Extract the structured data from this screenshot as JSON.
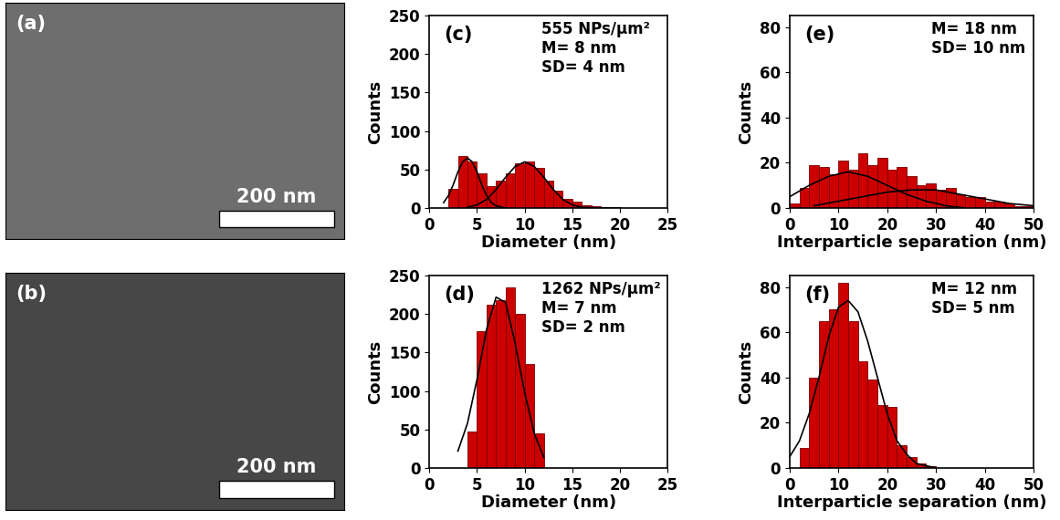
{
  "chart_data": [
    {
      "type": "image",
      "panel_label": "(a)",
      "scale_bar": "200 nm",
      "color": "#6e6e6e",
      "tick_labels": false
    },
    {
      "type": "image",
      "panel_label": "(b)",
      "scale_bar": "200 nm",
      "color": "#474747",
      "tick_labels": false
    },
    {
      "type": "histogram",
      "panel_label": "(c)",
      "annotations": [
        "555 NPs/µm²",
        "M= 8 nm",
        "SD= 4 nm"
      ],
      "x_label": "Diameter (nm)",
      "y_label": "Counts",
      "color": "#cc0000",
      "bins": [
        2,
        3,
        4,
        5,
        6,
        7,
        8,
        9,
        10,
        11,
        12,
        13,
        14,
        15,
        16,
        17,
        18,
        19,
        20
      ],
      "counts": [
        25,
        68,
        60,
        45,
        28,
        35,
        45,
        58,
        60,
        52,
        35,
        22,
        12,
        8,
        4,
        2,
        1,
        1
      ],
      "curves": [
        {
          "color": "#000000",
          "x": [
            1.5,
            2,
            2.5,
            3,
            3.5,
            4,
            4.5,
            5,
            5.5,
            6,
            6.5,
            7,
            8
          ],
          "values": [
            7,
            16,
            30,
            47,
            60,
            65,
            60,
            47,
            30,
            16,
            7,
            3,
            0
          ]
        },
        {
          "color": "#000000",
          "x": [
            4,
            5,
            6,
            7,
            8,
            9,
            10,
            11,
            12,
            13,
            14,
            15,
            16,
            18,
            20
          ],
          "values": [
            1,
            4,
            11,
            24,
            40,
            54,
            60,
            54,
            40,
            24,
            11,
            4,
            1,
            0,
            0
          ]
        }
      ],
      "xlim": [
        0,
        25
      ],
      "xticks": [
        0,
        5,
        10,
        15,
        20,
        25
      ],
      "ylim": [
        0,
        250
      ],
      "yticks": [
        0,
        50,
        100,
        150,
        200,
        250
      ]
    },
    {
      "type": "histogram",
      "panel_label": "(d)",
      "annotations": [
        "1262 NPs/µm²",
        "M= 7 nm",
        "SD= 2 nm"
      ],
      "x_label": "Diameter (nm)",
      "y_label": "Counts",
      "color": "#cc0000",
      "bins": [
        4,
        5,
        6,
        7,
        8,
        9,
        10,
        11,
        12
      ],
      "counts": [
        48,
        178,
        212,
        218,
        235,
        200,
        135,
        45
      ],
      "curves": [
        {
          "color": "#000000",
          "x": [
            3,
            4,
            5,
            6,
            7,
            8,
            9,
            10,
            11,
            12
          ],
          "values": [
            22,
            58,
            115,
            180,
            222,
            215,
            162,
            98,
            45,
            14
          ]
        }
      ],
      "xlim": [
        0,
        25
      ],
      "xticks": [
        0,
        5,
        10,
        15,
        20,
        25
      ],
      "ylim": [
        0,
        250
      ],
      "yticks": [
        0,
        50,
        100,
        150,
        200,
        250
      ]
    },
    {
      "type": "histogram",
      "panel_label": "(e)",
      "annotations": [
        "M= 18 nm",
        "SD= 10 nm"
      ],
      "x_label": "Interparticle separation (nm)",
      "y_label": "Counts",
      "color": "#cc0000",
      "bins": [
        0,
        2,
        4,
        6,
        8,
        10,
        12,
        14,
        16,
        18,
        20,
        22,
        24,
        26,
        28,
        30,
        32,
        34,
        36,
        38,
        40,
        42,
        44,
        46,
        48,
        50
      ],
      "counts": [
        2,
        9,
        19,
        18,
        15,
        21,
        17,
        24,
        19,
        22,
        17,
        18,
        14,
        10,
        11,
        8,
        9,
        6,
        5,
        5,
        3,
        3,
        2,
        1,
        1
      ],
      "curves": [
        {
          "color": "#000000",
          "x": [
            0,
            4,
            8,
            12,
            16,
            20,
            24,
            28,
            32,
            36
          ],
          "values": [
            5,
            10,
            14,
            16,
            14,
            10,
            6,
            3,
            1,
            0
          ]
        },
        {
          "color": "#000000",
          "x": [
            5,
            10,
            15,
            20,
            25,
            30,
            35,
            40,
            45,
            50
          ],
          "values": [
            1,
            3,
            5,
            7,
            8,
            8,
            6,
            4,
            2,
            1
          ]
        }
      ],
      "xlim": [
        0,
        50
      ],
      "xticks": [
        0,
        10,
        20,
        30,
        40,
        50
      ],
      "ylim": [
        0,
        85
      ],
      "yticks": [
        0,
        20,
        40,
        60,
        80
      ]
    },
    {
      "type": "histogram",
      "panel_label": "(f)",
      "annotations": [
        "M= 12 nm",
        "SD= 5 nm"
      ],
      "x_label": "Interparticle separation (nm)",
      "y_label": "Counts",
      "color": "#cc0000",
      "bins": [
        2,
        4,
        6,
        8,
        10,
        12,
        14,
        16,
        18,
        20,
        22,
        24,
        26,
        28,
        30
      ],
      "counts": [
        9,
        40,
        65,
        70,
        82,
        65,
        47,
        39,
        28,
        27,
        10,
        5,
        2,
        1
      ],
      "curves": [
        {
          "color": "#000000",
          "x": [
            0,
            2,
            4,
            6,
            8,
            10,
            12,
            14,
            16,
            18,
            20,
            22,
            24,
            26,
            28,
            30
          ],
          "values": [
            5,
            12,
            24,
            40,
            58,
            71,
            74,
            69,
            56,
            40,
            24,
            12,
            6,
            2,
            1,
            0
          ]
        }
      ],
      "xlim": [
        0,
        50
      ],
      "xticks": [
        0,
        10,
        20,
        30,
        40,
        50
      ],
      "ylim": [
        0,
        85
      ],
      "yticks": [
        0,
        20,
        40,
        60,
        80
      ]
    }
  ]
}
